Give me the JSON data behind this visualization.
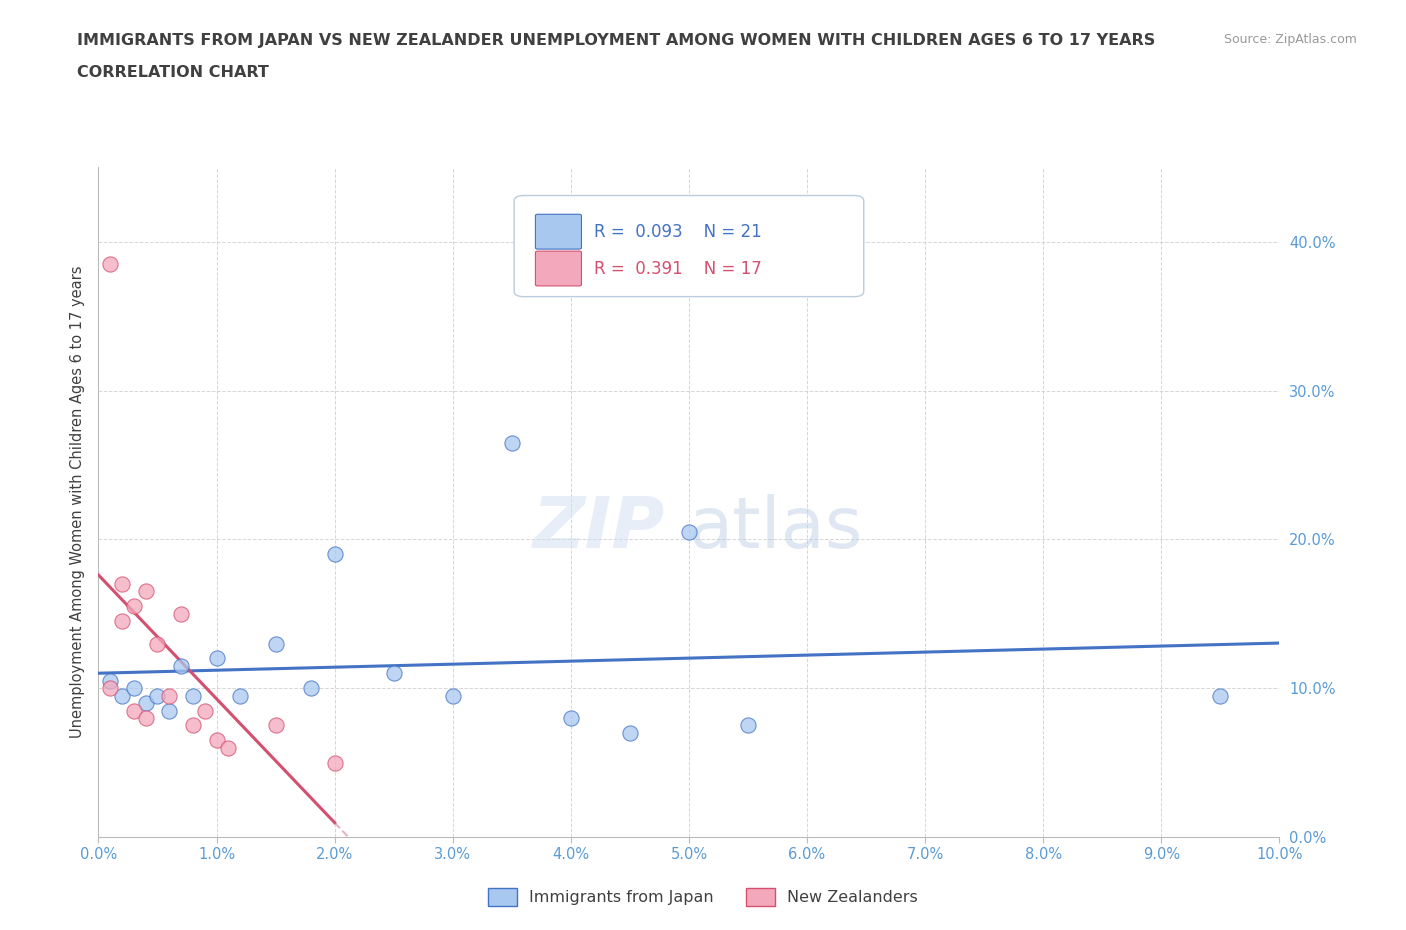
{
  "title_line1": "IMMIGRANTS FROM JAPAN VS NEW ZEALANDER UNEMPLOYMENT AMONG WOMEN WITH CHILDREN AGES 6 TO 17 YEARS",
  "title_line2": "CORRELATION CHART",
  "source_text": "Source: ZipAtlas.com",
  "ylabel": "Unemployment Among Women with Children Ages 6 to 17 years",
  "xlim": [
    0.0,
    0.1
  ],
  "ylim": [
    0.0,
    0.45
  ],
  "xtick_vals": [
    0.0,
    0.01,
    0.02,
    0.03,
    0.04,
    0.05,
    0.06,
    0.07,
    0.08,
    0.09,
    0.1
  ],
  "ytick_vals": [
    0.0,
    0.1,
    0.2,
    0.3,
    0.4
  ],
  "watermark_zip": "ZIP",
  "watermark_atlas": "atlas",
  "legend_r1": "0.093",
  "legend_n1": "21",
  "legend_r2": "0.391",
  "legend_n2": "17",
  "color_japan": "#A8C8F0",
  "color_nz": "#F4A8BC",
  "color_japan_line": "#4472C4",
  "color_nz_line": "#D45070",
  "color_nz_dashed": "#E0A0B8",
  "japan_x": [
    0.001,
    0.002,
    0.003,
    0.004,
    0.005,
    0.006,
    0.007,
    0.008,
    0.01,
    0.012,
    0.015,
    0.018,
    0.02,
    0.025,
    0.03,
    0.035,
    0.04,
    0.045,
    0.05,
    0.055,
    0.095
  ],
  "japan_y": [
    0.105,
    0.095,
    0.1,
    0.09,
    0.095,
    0.085,
    0.115,
    0.095,
    0.12,
    0.095,
    0.13,
    0.1,
    0.19,
    0.11,
    0.095,
    0.265,
    0.08,
    0.07,
    0.205,
    0.075,
    0.095
  ],
  "nz_x": [
    0.001,
    0.001,
    0.002,
    0.002,
    0.003,
    0.003,
    0.004,
    0.004,
    0.005,
    0.006,
    0.007,
    0.008,
    0.009,
    0.01,
    0.011,
    0.015,
    0.02
  ],
  "nz_y": [
    0.385,
    0.1,
    0.17,
    0.145,
    0.155,
    0.085,
    0.165,
    0.08,
    0.13,
    0.095,
    0.15,
    0.075,
    0.085,
    0.065,
    0.06,
    0.075,
    0.05
  ],
  "background_color": "#FFFFFF",
  "grid_color": "#CCCCCC",
  "title_color": "#404040",
  "axis_label_color": "#5A9BD5",
  "right_axis_color": "#5A9BD5"
}
